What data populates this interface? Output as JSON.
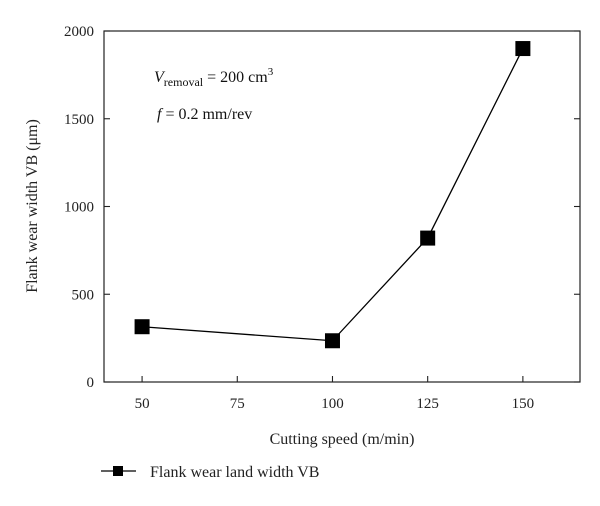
{
  "chart_data": {
    "type": "line",
    "title": "",
    "xlabel": "Cutting speed (m/min)",
    "ylabel": "Flank wear width VB (μm)",
    "xlim": [
      40,
      165
    ],
    "ylim": [
      0,
      2000
    ],
    "xticks": [
      50,
      75,
      100,
      125,
      150
    ],
    "yticks": [
      0,
      500,
      1000,
      1500,
      2000
    ],
    "series": [
      {
        "name": "Flank wear land width VB",
        "marker": "square",
        "color": "#000000",
        "x": [
          50,
          100,
          125,
          150
        ],
        "y": [
          315,
          235,
          820,
          1900
        ]
      }
    ],
    "annotations": [
      {
        "var": "V",
        "sub": "removal",
        "rest": " = 200 cm",
        "sup": "3"
      },
      {
        "var": "f",
        "rest": " = 0.2 mm/rev"
      }
    ],
    "legend_position": "bottom-left",
    "grid": false
  }
}
